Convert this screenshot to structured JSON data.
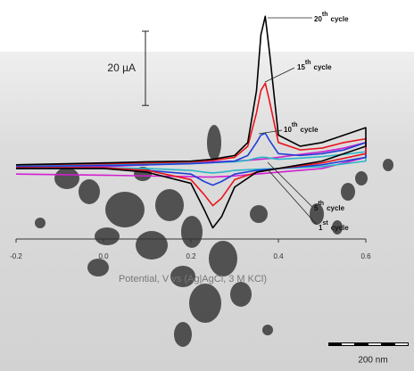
{
  "chart_data": {
    "type": "line",
    "x_label": "Potential, V vs (Ag|AgCl, 3 M KCl)",
    "xlim": [
      -0.2,
      0.6
    ],
    "xticks": [
      -0.2,
      {
        "value": 0,
        "label": "0.0"
      },
      0.2,
      0.4,
      0.6
    ],
    "ylim": [
      -20,
      42
    ],
    "current_scale": {
      "value": 20,
      "label": "20 µA"
    },
    "image_scale": "200 nm",
    "x": [
      -0.2,
      0,
      0.1,
      0.2,
      0.25,
      0.3,
      0.33,
      0.35,
      0.36,
      0.37,
      0.38,
      0.4,
      0.45,
      0.5,
      0.55,
      0.6,
      0.6,
      0.5,
      0.4,
      0.35,
      0.3,
      0.27,
      0.25,
      0.23,
      0.2,
      0.1,
      0,
      -0.2
    ],
    "series": [
      {
        "label": {
          "number": "20",
          "suffix": "th",
          "word": "cycle"
        },
        "color": "#000000",
        "values": [
          0,
          0.5,
          0.8,
          1,
          1.5,
          2.5,
          6,
          20,
          35,
          40,
          30,
          8,
          5,
          6,
          8,
          10,
          5,
          1,
          -1,
          -2,
          -6,
          -14,
          -17,
          -12,
          -5,
          -2,
          -1,
          -1
        ]
      },
      {
        "label": {
          "number": "15",
          "suffix": "th",
          "word": "cycle"
        },
        "color": "#e8141c",
        "values": [
          0,
          0.3,
          0.5,
          0.8,
          1.2,
          2,
          5,
          14,
          20,
          22,
          17,
          6,
          4,
          4.5,
          6,
          7,
          3,
          0.5,
          -1,
          -2,
          -4,
          -9,
          -11,
          -8,
          -4,
          -1.5,
          -0.8,
          -0.8
        ]
      },
      {
        "label": {
          "number": "10",
          "suffix": "th",
          "word": "cycle"
        },
        "color": "#1f3fd6",
        "values": [
          -0.5,
          -0.2,
          0,
          0.3,
          0.6,
          1,
          2.5,
          6,
          8,
          8.5,
          6.5,
          3,
          2.5,
          3,
          4,
          6,
          2,
          0,
          -1,
          -1.5,
          -2.5,
          -4.5,
          -5.5,
          -4.5,
          -2.5,
          -1.5,
          -1,
          -1
        ]
      },
      {
        "label": {
          "number": "5",
          "suffix": "th",
          "word": "cycle"
        },
        "color": "#2bb5c8",
        "values": [
          -0.3,
          0,
          0.2,
          0.4,
          0.6,
          0.8,
          1.2,
          1.8,
          2,
          2,
          1.8,
          1.5,
          1.8,
          2.2,
          2.8,
          3.5,
          1,
          -0.5,
          -1,
          -1.2,
          -1.5,
          -2,
          -2.2,
          -2,
          -1.5,
          -1,
          -0.8,
          -0.8
        ]
      },
      {
        "label": {
          "number": "1",
          "suffix": "st",
          "word": "cycle"
        },
        "color": "#d01fd0",
        "values": [
          -1,
          -0.5,
          0,
          0.5,
          0.8,
          1,
          1.2,
          1.4,
          1.5,
          1.6,
          1.7,
          2,
          2.8,
          3.5,
          4.5,
          6,
          2,
          -1,
          -2,
          -2.5,
          -3,
          -3.2,
          -3.3,
          -3.3,
          -3.2,
          -3,
          -2.8,
          -2.5
        ]
      }
    ]
  }
}
